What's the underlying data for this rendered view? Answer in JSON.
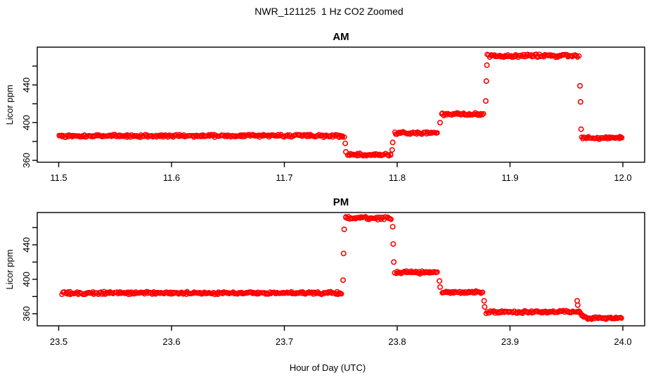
{
  "header": {
    "title": "NWR_121125  1 Hz CO2 Zoomed"
  },
  "xlabel": "Hour of Day (UTC)",
  "colors": {
    "points": "#FF0000",
    "axis": "#000000",
    "background": "#FFFFFF"
  },
  "chart_data": [
    {
      "type": "scatter",
      "title": "AM",
      "ylabel": "Licor ppm",
      "marker": "open-circle",
      "color": "#FF0000",
      "xlim": [
        11.5,
        12.0
      ],
      "ylim": [
        358,
        480.1
      ],
      "xticks": [
        "11.5",
        "11.6",
        "11.7",
        "11.8",
        "11.9",
        "12.0"
      ],
      "yticks": {
        "labeled": [
          "360",
          "400",
          "440"
        ],
        "all": [
          360,
          380,
          400,
          420,
          440,
          460
        ]
      },
      "segments": [
        {
          "x_start": 11.5,
          "x_end": 11.753,
          "value": 386,
          "noise": 1.2
        },
        {
          "x_start": 11.756,
          "x_end": 11.795,
          "value": 366,
          "noise": 1.2
        },
        {
          "x_start": 11.798,
          "x_end": 11.8365,
          "value": 389,
          "noise": 1.2
        },
        {
          "x_start": 11.8395,
          "x_end": 11.877,
          "value": 409,
          "noise": 1.2
        },
        {
          "x_start": 11.88,
          "x_end": 11.9615,
          "value": 471,
          "noise": 1.4
        },
        {
          "x_start": 11.9635,
          "x_end": 12.0,
          "value": 384,
          "noise": 1.2
        }
      ],
      "transition_points": [
        {
          "x": 11.754,
          "y": 378
        },
        {
          "x": 11.7545,
          "y": 369
        },
        {
          "x": 11.7955,
          "y": 371
        },
        {
          "x": 11.796,
          "y": 379
        },
        {
          "x": 11.838,
          "y": 400
        },
        {
          "x": 11.8785,
          "y": 423
        },
        {
          "x": 11.879,
          "y": 444
        },
        {
          "x": 11.8795,
          "y": 461
        },
        {
          "x": 11.962,
          "y": 439
        },
        {
          "x": 11.9625,
          "y": 422
        },
        {
          "x": 11.963,
          "y": 393
        }
      ]
    },
    {
      "type": "scatter",
      "title": "PM",
      "ylabel": "Licor ppm",
      "marker": "open-circle",
      "color": "#FF0000",
      "xlim": [
        23.5,
        24.0
      ],
      "ylim": [
        346,
        477.5
      ],
      "xticks": [
        "23.5",
        "23.6",
        "23.7",
        "23.8",
        "23.9",
        "24.0"
      ],
      "yticks": {
        "labeled": [
          "360",
          "400",
          "440"
        ],
        "all": [
          360,
          380,
          400,
          420,
          440,
          460
        ]
      },
      "segments": [
        {
          "x_start": 23.5025,
          "x_end": 23.751,
          "value": 384,
          "noise": 1.2
        },
        {
          "x_start": 23.754,
          "x_end": 23.795,
          "value": 471,
          "noise": 1.3
        },
        {
          "x_start": 23.798,
          "x_end": 23.8365,
          "value": 408,
          "noise": 1.2
        },
        {
          "x_start": 23.84,
          "x_end": 23.8765,
          "value": 385,
          "noise": 1.2
        },
        {
          "x_start": 23.879,
          "x_end": 23.9615,
          "value": 362,
          "noise": 1.2
        },
        {
          "x_start": 23.9615,
          "x_end": 23.9685,
          "value": 362,
          "value_end": 356,
          "ease": "decay",
          "noise": 0.7
        },
        {
          "x_start": 23.9685,
          "x_end": 24.0,
          "value": 355,
          "noise": 1.0
        }
      ],
      "transition_points": [
        {
          "x": 23.752,
          "y": 399
        },
        {
          "x": 23.7525,
          "y": 430
        },
        {
          "x": 23.753,
          "y": 458
        },
        {
          "x": 23.796,
          "y": 461
        },
        {
          "x": 23.7965,
          "y": 441
        },
        {
          "x": 23.797,
          "y": 420
        },
        {
          "x": 23.8375,
          "y": 398
        },
        {
          "x": 23.838,
          "y": 391
        },
        {
          "x": 23.877,
          "y": 375
        },
        {
          "x": 23.8775,
          "y": 368
        },
        {
          "x": 23.9595,
          "y": 375
        },
        {
          "x": 23.96,
          "y": 370
        }
      ]
    }
  ]
}
